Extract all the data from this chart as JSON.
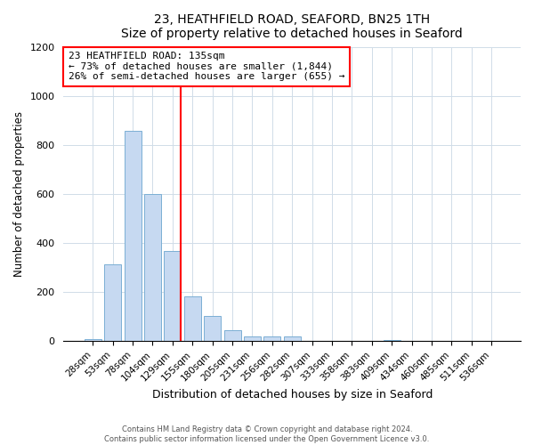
{
  "title": "23, HEATHFIELD ROAD, SEAFORD, BN25 1TH",
  "subtitle": "Size of property relative to detached houses in Seaford",
  "xlabel": "Distribution of detached houses by size in Seaford",
  "ylabel": "Number of detached properties",
  "bar_labels": [
    "28sqm",
    "53sqm",
    "78sqm",
    "104sqm",
    "129sqm",
    "155sqm",
    "180sqm",
    "205sqm",
    "231sqm",
    "256sqm",
    "282sqm",
    "307sqm",
    "333sqm",
    "358sqm",
    "383sqm",
    "409sqm",
    "434sqm",
    "460sqm",
    "485sqm",
    "511sqm",
    "536sqm"
  ],
  "bar_values": [
    10,
    315,
    860,
    600,
    370,
    185,
    105,
    45,
    20,
    20,
    20,
    0,
    0,
    0,
    0,
    5,
    0,
    0,
    0,
    0,
    0
  ],
  "bar_color": "#c6d9f1",
  "bar_edge_color": "#7bafd4",
  "vline_x": 4,
  "vline_color": "red",
  "annotation_title": "23 HEATHFIELD ROAD: 135sqm",
  "annotation_line1": "← 73% of detached houses are smaller (1,844)",
  "annotation_line2": "26% of semi-detached houses are larger (655) →",
  "annotation_box_color": "red",
  "ylim": [
    0,
    1200
  ],
  "yticks": [
    0,
    200,
    400,
    600,
    800,
    1000,
    1200
  ],
  "footer1": "Contains HM Land Registry data © Crown copyright and database right 2024.",
  "footer2": "Contains public sector information licensed under the Open Government Licence v3.0."
}
